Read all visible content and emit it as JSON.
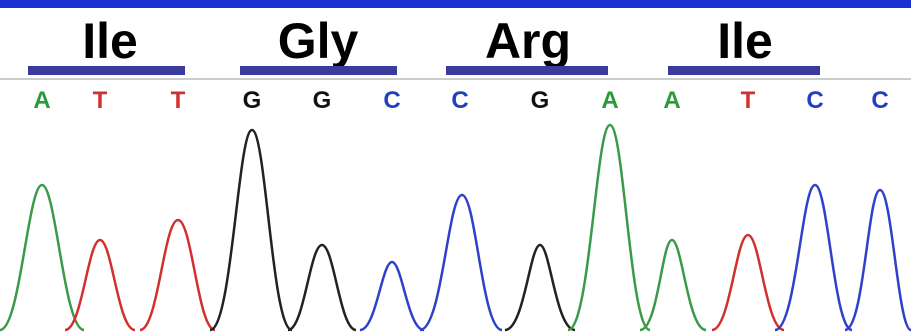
{
  "amino_acids": [
    "Ile",
    "Gly",
    "Arg",
    "Ile"
  ],
  "bases": [
    "A",
    "T",
    "T",
    "G",
    "G",
    "C",
    "C",
    "G",
    "A",
    "A",
    "T",
    "C",
    "C"
  ]
}
